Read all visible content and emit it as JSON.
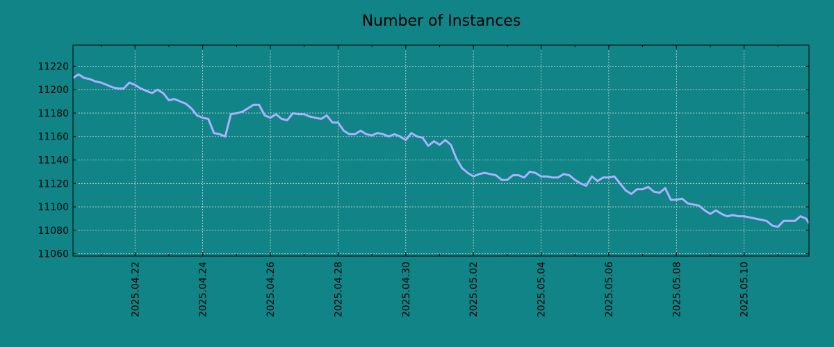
{
  "colors": {
    "background": "#108486",
    "line": "#aab2ff",
    "grid": "#d8d8d8",
    "axes": "#000000"
  },
  "chart_data": {
    "type": "line",
    "title": "Number of Instances",
    "xlabel": "",
    "ylabel": "",
    "grid": true,
    "x_tick_labels": [
      "2025.04.22",
      "2025.04.24",
      "2025.04.26",
      "2025.04.28",
      "2025.04.30",
      "2025.05.02",
      "2025.05.04",
      "2025.05.06",
      "2025.05.08",
      "2025.05.10"
    ],
    "y_ticks": [
      11060,
      11080,
      11100,
      11120,
      11140,
      11160,
      11180,
      11200,
      11220
    ],
    "x_range": [
      "2025-04-20 04:00",
      "2025-05-11 22:00"
    ],
    "ylim": [
      11058,
      11238
    ],
    "series": [
      {
        "points": [
          [
            "2025-04-20 04:00",
            11210
          ],
          [
            "2025-04-20 08:00",
            11213
          ],
          [
            "2025-04-20 12:00",
            11210
          ],
          [
            "2025-04-20 16:00",
            11209
          ],
          [
            "2025-04-20 20:00",
            11207
          ],
          [
            "2025-04-21 00:00",
            11206
          ],
          [
            "2025-04-21 04:00",
            11204
          ],
          [
            "2025-04-21 08:00",
            11202
          ],
          [
            "2025-04-21 12:00",
            11201
          ],
          [
            "2025-04-21 16:00",
            11201
          ],
          [
            "2025-04-21 20:00",
            11206
          ],
          [
            "2025-04-22 00:00",
            11204
          ],
          [
            "2025-04-22 04:00",
            11201
          ],
          [
            "2025-04-22 08:00",
            11199
          ],
          [
            "2025-04-22 12:00",
            11197
          ],
          [
            "2025-04-22 16:00",
            11200
          ],
          [
            "2025-04-22 20:00",
            11197
          ],
          [
            "2025-04-23 00:00",
            11191
          ],
          [
            "2025-04-23 04:00",
            11192
          ],
          [
            "2025-04-23 08:00",
            11190
          ],
          [
            "2025-04-23 12:00",
            11188
          ],
          [
            "2025-04-23 16:00",
            11184
          ],
          [
            "2025-04-23 20:00",
            11178
          ],
          [
            "2025-04-24 00:00",
            11176
          ],
          [
            "2025-04-24 04:00",
            11175
          ],
          [
            "2025-04-24 08:00",
            11163
          ],
          [
            "2025-04-24 12:00",
            11162
          ],
          [
            "2025-04-24 16:00",
            11160
          ],
          [
            "2025-04-24 20:00",
            11179
          ],
          [
            "2025-04-25 00:00",
            11180
          ],
          [
            "2025-04-25 04:00",
            11181
          ],
          [
            "2025-04-25 08:00",
            11184
          ],
          [
            "2025-04-25 12:00",
            11187
          ],
          [
            "2025-04-25 16:00",
            11187
          ],
          [
            "2025-04-25 20:00",
            11178
          ],
          [
            "2025-04-26 00:00",
            11176
          ],
          [
            "2025-04-26 04:00",
            11179
          ],
          [
            "2025-04-26 08:00",
            11175
          ],
          [
            "2025-04-26 12:00",
            11174
          ],
          [
            "2025-04-26 16:00",
            11180
          ],
          [
            "2025-04-26 20:00",
            11179
          ],
          [
            "2025-04-27 00:00",
            11179
          ],
          [
            "2025-04-27 04:00",
            11177
          ],
          [
            "2025-04-27 08:00",
            11176
          ],
          [
            "2025-04-27 12:00",
            11175
          ],
          [
            "2025-04-27 16:00",
            11178
          ],
          [
            "2025-04-27 20:00",
            11172
          ],
          [
            "2025-04-28 00:00",
            11172
          ],
          [
            "2025-04-28 04:00",
            11165
          ],
          [
            "2025-04-28 08:00",
            11162
          ],
          [
            "2025-04-28 12:00",
            11162
          ],
          [
            "2025-04-28 16:00",
            11165
          ],
          [
            "2025-04-28 20:00",
            11162
          ],
          [
            "2025-04-29 00:00",
            11161
          ],
          [
            "2025-04-29 04:00",
            11163
          ],
          [
            "2025-04-29 08:00",
            11162
          ],
          [
            "2025-04-29 12:00",
            11160
          ],
          [
            "2025-04-29 16:00",
            11162
          ],
          [
            "2025-04-29 20:00",
            11160
          ],
          [
            "2025-04-30 00:00",
            11157
          ],
          [
            "2025-04-30 04:00",
            11163
          ],
          [
            "2025-04-30 08:00",
            11160
          ],
          [
            "2025-04-30 12:00",
            11159
          ],
          [
            "2025-04-30 16:00",
            11152
          ],
          [
            "2025-04-30 20:00",
            11156
          ],
          [
            "2025-05-01 00:00",
            11153
          ],
          [
            "2025-05-01 04:00",
            11157
          ],
          [
            "2025-05-01 08:00",
            11153
          ],
          [
            "2025-05-01 12:00",
            11141
          ],
          [
            "2025-05-01 16:00",
            11133
          ],
          [
            "2025-05-01 20:00",
            11129
          ],
          [
            "2025-05-02 00:00",
            11126
          ],
          [
            "2025-05-02 04:00",
            11128
          ],
          [
            "2025-05-02 08:00",
            11129
          ],
          [
            "2025-05-02 12:00",
            11128
          ],
          [
            "2025-05-02 16:00",
            11127
          ],
          [
            "2025-05-02 20:00",
            11123
          ],
          [
            "2025-05-03 00:00",
            11123
          ],
          [
            "2025-05-03 04:00",
            11127
          ],
          [
            "2025-05-03 08:00",
            11127
          ],
          [
            "2025-05-03 12:00",
            11125
          ],
          [
            "2025-05-03 16:00",
            11130
          ],
          [
            "2025-05-03 20:00",
            11129
          ],
          [
            "2025-05-04 00:00",
            11126
          ],
          [
            "2025-05-04 04:00",
            11126
          ],
          [
            "2025-05-04 08:00",
            11125
          ],
          [
            "2025-05-04 12:00",
            11125
          ],
          [
            "2025-05-04 16:00",
            11128
          ],
          [
            "2025-05-04 20:00",
            11127
          ],
          [
            "2025-05-05 00:00",
            11123
          ],
          [
            "2025-05-05 04:00",
            11120
          ],
          [
            "2025-05-05 08:00",
            11118
          ],
          [
            "2025-05-05 12:00",
            11126
          ],
          [
            "2025-05-05 16:00",
            11122
          ],
          [
            "2025-05-05 20:00",
            11125
          ],
          [
            "2025-05-06 00:00",
            11125
          ],
          [
            "2025-05-06 04:00",
            11126
          ],
          [
            "2025-05-06 08:00",
            11120
          ],
          [
            "2025-05-06 12:00",
            11114
          ],
          [
            "2025-05-06 16:00",
            11111
          ],
          [
            "2025-05-06 20:00",
            11115
          ],
          [
            "2025-05-07 00:00",
            11115
          ],
          [
            "2025-05-07 04:00",
            11117
          ],
          [
            "2025-05-07 08:00",
            11113
          ],
          [
            "2025-05-07 12:00",
            11112
          ],
          [
            "2025-05-07 16:00",
            11116
          ],
          [
            "2025-05-07 20:00",
            11106
          ],
          [
            "2025-05-08 00:00",
            11106
          ],
          [
            "2025-05-08 04:00",
            11107
          ],
          [
            "2025-05-08 08:00",
            11103
          ],
          [
            "2025-05-08 12:00",
            11102
          ],
          [
            "2025-05-08 16:00",
            11101
          ],
          [
            "2025-05-08 20:00",
            11097
          ],
          [
            "2025-05-09 00:00",
            11094
          ],
          [
            "2025-05-09 04:00",
            11097
          ],
          [
            "2025-05-09 08:00",
            11094
          ],
          [
            "2025-05-09 12:00",
            11092
          ],
          [
            "2025-05-09 16:00",
            11093
          ],
          [
            "2025-05-09 20:00",
            11092
          ],
          [
            "2025-05-10 00:00",
            11092
          ],
          [
            "2025-05-10 04:00",
            11091
          ],
          [
            "2025-05-10 08:00",
            11090
          ],
          [
            "2025-05-10 12:00",
            11089
          ],
          [
            "2025-05-10 16:00",
            11088
          ],
          [
            "2025-05-10 20:00",
            11084
          ],
          [
            "2025-05-11 00:00",
            11083
          ],
          [
            "2025-05-11 04:00",
            11088
          ],
          [
            "2025-05-11 08:00",
            11088
          ],
          [
            "2025-05-11 12:00",
            11088
          ],
          [
            "2025-05-11 16:00",
            11092
          ],
          [
            "2025-05-11 20:00",
            11090
          ],
          [
            "2025-05-11 22:00",
            11086
          ]
        ]
      }
    ]
  }
}
